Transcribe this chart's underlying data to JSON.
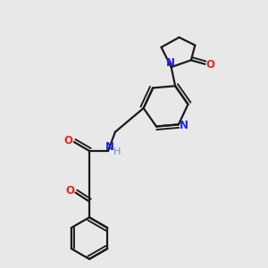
{
  "bg_color": "#e8e8e8",
  "bond_color": "#1a1a1a",
  "N_color": "#2222ee",
  "O_color": "#ee2222",
  "H_color": "#5a9a9a",
  "line_width": 1.6,
  "font_size": 8.5,
  "xlim": [
    0.2,
    2.8
  ],
  "ylim": [
    0.15,
    2.85
  ]
}
